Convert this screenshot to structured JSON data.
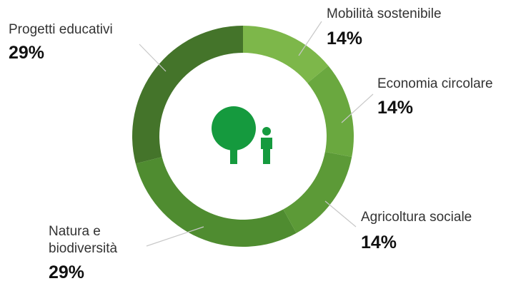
{
  "chart_data": {
    "type": "donut",
    "categories": [
      "Mobilità sostenibile",
      "Economia circolare",
      "Agricoltura sociale",
      "Natura e biodiversità",
      "Progetti educativi"
    ],
    "values": [
      14,
      14,
      14,
      29,
      29
    ],
    "value_labels": [
      "14%",
      "14%",
      "14%",
      "29%",
      "29%"
    ],
    "colors": [
      "#7db74a",
      "#6aa83f",
      "#5c9a37",
      "#4f8c30",
      "#44742a"
    ]
  }
}
